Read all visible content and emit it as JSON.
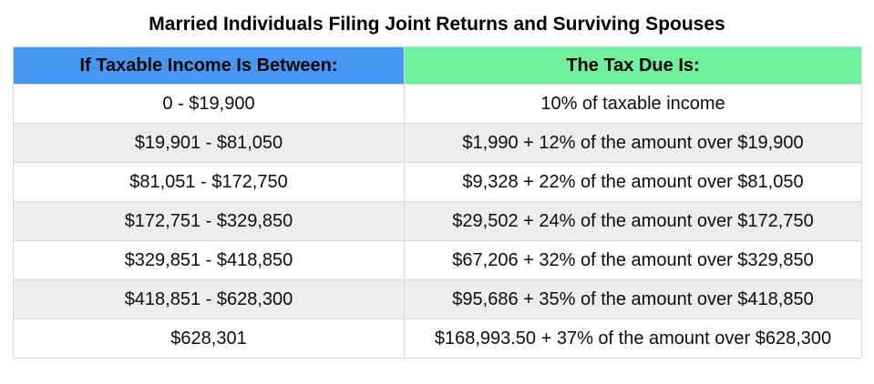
{
  "title": "Married Individuals Filing Joint Returns and Surviving Spouses",
  "colors": {
    "income_header_bg": "#4598f2",
    "tax_header_bg": "#6ff09c",
    "alt_row_bg": "#ededed",
    "row_bg": "#ffffff",
    "cell_border": "#d9d9d9",
    "text": "#000000"
  },
  "chart_data": {
    "type": "table",
    "title": "Married Individuals Filing Joint Returns and Surviving Spouses",
    "columns": [
      "If Taxable Income Is Between:",
      "The Tax Due Is:"
    ],
    "rows": [
      [
        "0 - $19,900",
        "10% of taxable income"
      ],
      [
        "$19,901 - $81,050",
        "$1,990 + 12% of the amount over $19,900"
      ],
      [
        "$81,051 - $172,750",
        "$9,328 + 22% of the amount over $81,050"
      ],
      [
        "$172,751 - $329,850",
        "$29,502 + 24% of the amount over $172,750"
      ],
      [
        "$329,851 - $418,850",
        "$67,206 + 32% of the amount over $329,850"
      ],
      [
        "$418,851 - $628,300",
        "$95,686 + 35% of the amount over $418,850"
      ],
      [
        "$628,301",
        "$168,993.50 + 37% of the amount over $628,300"
      ]
    ]
  }
}
